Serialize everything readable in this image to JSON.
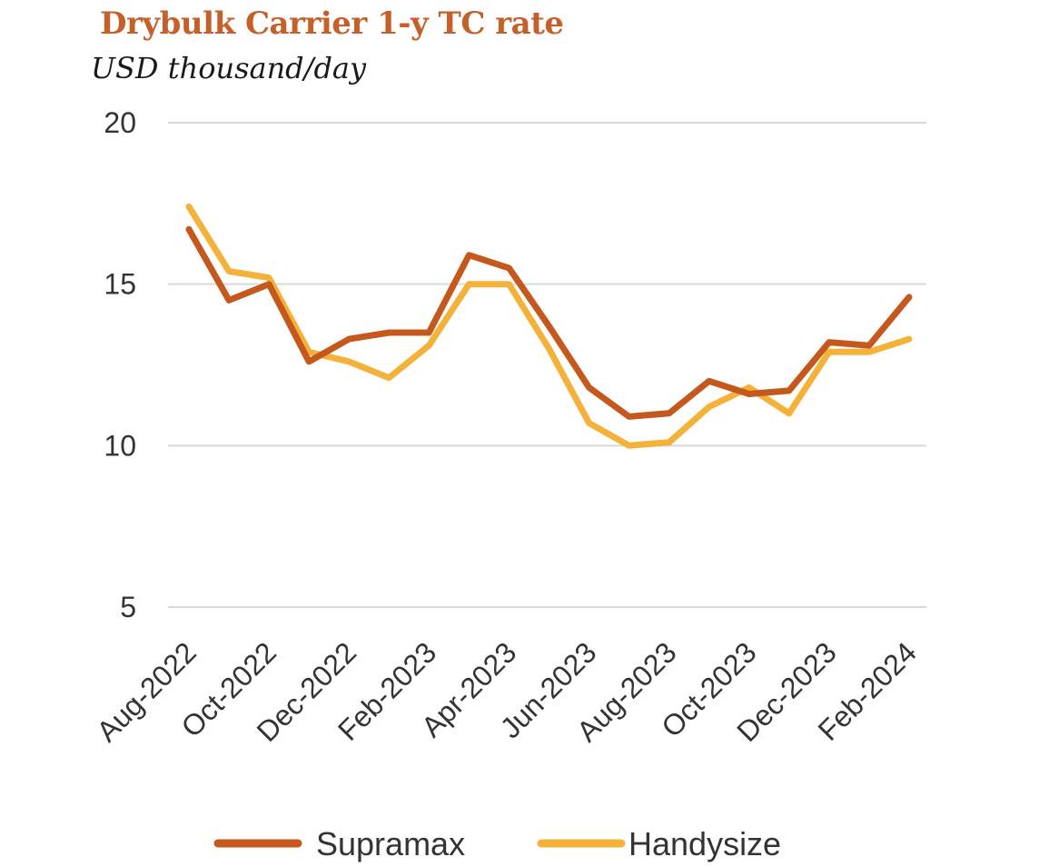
{
  "chart_data": {
    "type": "line",
    "title": "Drybulk Carrier 1-y TC rate",
    "subtitle": "USD thousand/day",
    "x": [
      "Aug-2022",
      "Sep-2022",
      "Oct-2022",
      "Nov-2022",
      "Dec-2022",
      "Jan-2023",
      "Feb-2023",
      "Mar-2023",
      "Apr-2023",
      "May-2023",
      "Jun-2023",
      "Jul-2023",
      "Aug-2023",
      "Sep-2023",
      "Oct-2023",
      "Nov-2023",
      "Dec-2023",
      "Jan-2024",
      "Feb-2024"
    ],
    "x_tick_labels": [
      "Aug-2022",
      "Oct-2022",
      "Dec-2022",
      "Feb-2023",
      "Apr-2023",
      "Jun-2023",
      "Aug-2023",
      "Oct-2023",
      "Dec-2023",
      "Feb-2024"
    ],
    "series": [
      {
        "name": "Supramax",
        "color": "#c5581c",
        "values": [
          16.7,
          14.5,
          15.0,
          12.6,
          13.3,
          13.5,
          13.5,
          15.9,
          15.5,
          13.7,
          11.8,
          10.9,
          11.0,
          12.0,
          11.6,
          11.7,
          13.2,
          13.1,
          14.6
        ]
      },
      {
        "name": "Handysize",
        "color": "#f5b23a",
        "values": [
          17.4,
          15.4,
          15.2,
          12.9,
          12.6,
          12.1,
          13.1,
          15.0,
          15.0,
          13.0,
          10.7,
          10.0,
          10.1,
          11.2,
          11.8,
          11.0,
          12.9,
          12.9,
          13.3
        ]
      }
    ],
    "y_ticks": [
      5,
      10,
      15,
      20
    ],
    "ylim": [
      5,
      20
    ],
    "xlabel": "",
    "ylabel": "",
    "grid": true,
    "legend_position": "bottom"
  }
}
